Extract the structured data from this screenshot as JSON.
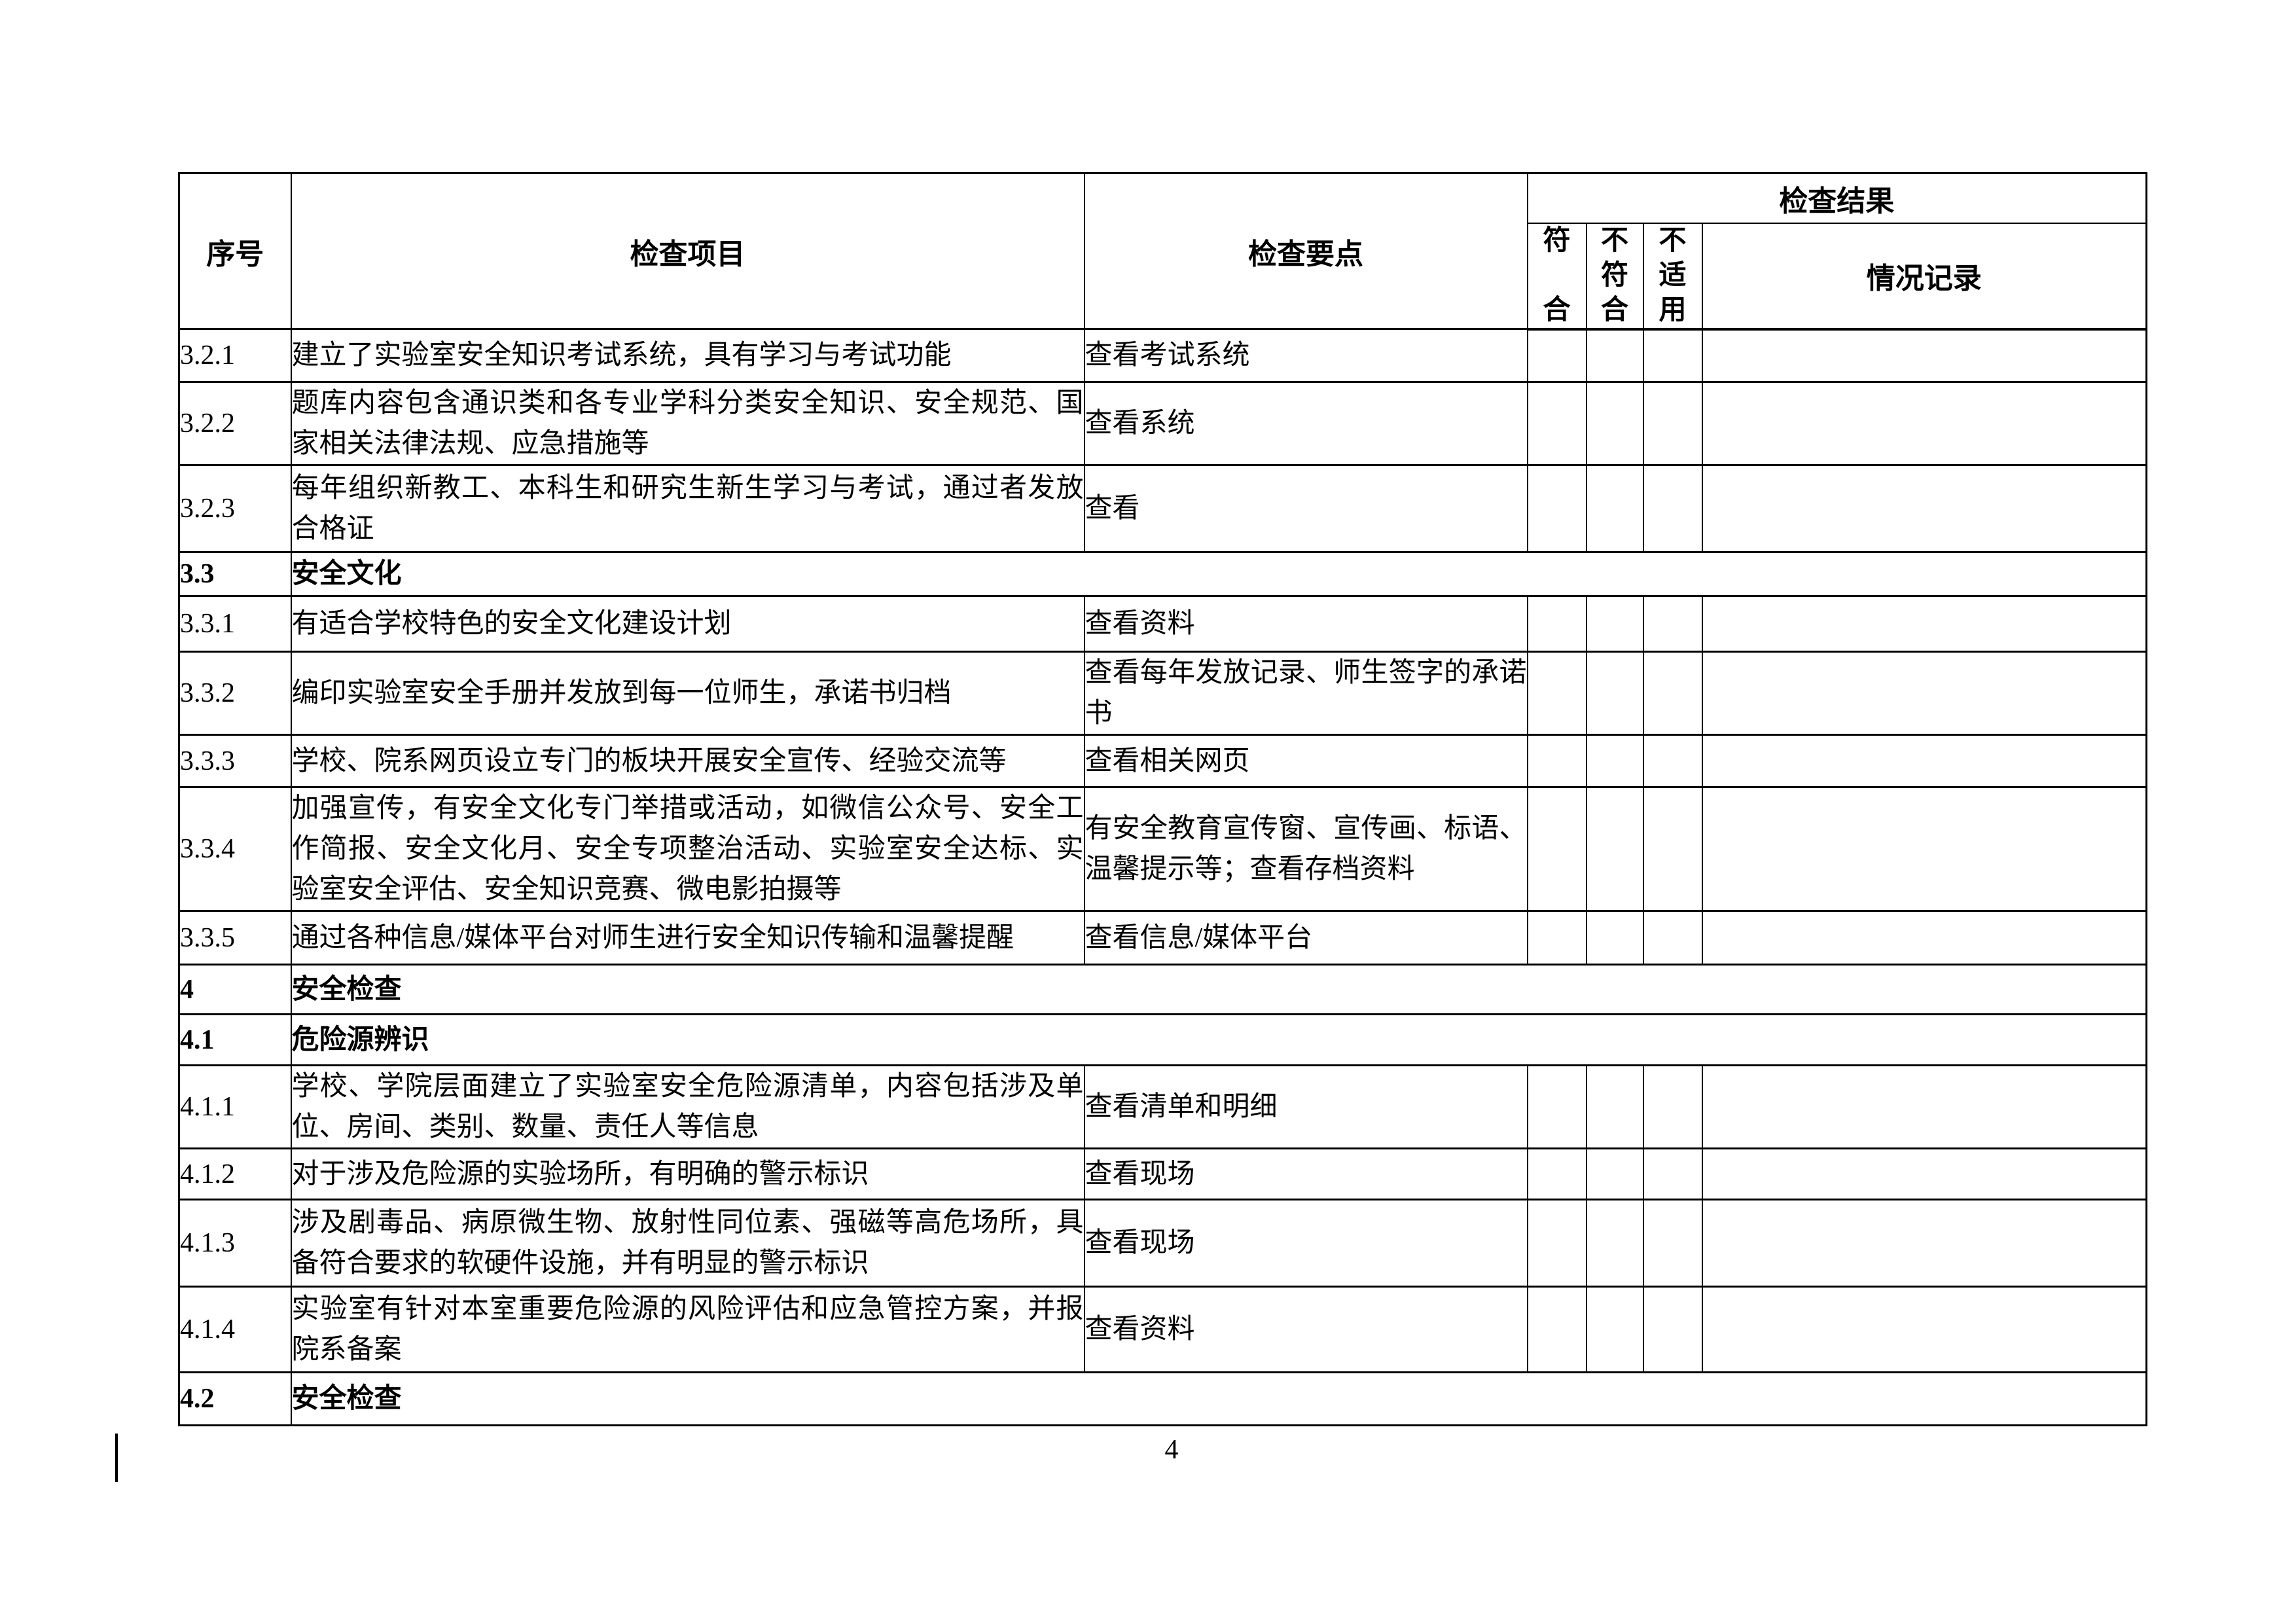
{
  "page": {
    "number": "4"
  },
  "table": {
    "headers": {
      "no": "序号",
      "item": "检查项目",
      "point": "检查要点",
      "result": "检查结果",
      "pass": "符合",
      "fail": "不符合",
      "na": "不适用",
      "record": "情况记录"
    },
    "rows": [
      {
        "type": "item",
        "no": "3.2.1",
        "item": "建立了实验室安全知识考试系统，具有学习与考试功能",
        "point": "查看考试系统",
        "pass": "",
        "fail": "",
        "na": "",
        "record": ""
      },
      {
        "type": "item",
        "no": "3.2.2",
        "item": "题库内容包含通识类和各专业学科分类安全知识、安全规范、国家相关法律法规、应急措施等",
        "point": "查看系统",
        "pass": "",
        "fail": "",
        "na": "",
        "record": ""
      },
      {
        "type": "item",
        "no": "3.2.3",
        "item": "每年组织新教工、本科生和研究生新生学习与考试，通过者发放合格证",
        "point": "查看",
        "pass": "",
        "fail": "",
        "na": "",
        "record": ""
      },
      {
        "type": "section",
        "no": "3.3",
        "item": "安全文化"
      },
      {
        "type": "item",
        "no": "3.3.1",
        "item": "有适合学校特色的安全文化建设计划",
        "point": "查看资料",
        "pass": "",
        "fail": "",
        "na": "",
        "record": ""
      },
      {
        "type": "item",
        "no": "3.3.2",
        "item": "编印实验室安全手册并发放到每一位师生，承诺书归档",
        "point": "查看每年发放记录、师生签字的承诺书",
        "pass": "",
        "fail": "",
        "na": "",
        "record": ""
      },
      {
        "type": "item",
        "no": "3.3.3",
        "item": "学校、院系网页设立专门的板块开展安全宣传、经验交流等",
        "point": "查看相关网页",
        "pass": "",
        "fail": "",
        "na": "",
        "record": ""
      },
      {
        "type": "item",
        "no": "3.3.4",
        "item": "加强宣传，有安全文化专门举措或活动，如微信公众号、安全工作简报、安全文化月、安全专项整治活动、实验室安全达标、实验室安全评估、安全知识竞赛、微电影拍摄等",
        "point": "有安全教育宣传窗、宣传画、标语、温馨提示等；查看存档资料",
        "pass": "",
        "fail": "",
        "na": "",
        "record": ""
      },
      {
        "type": "item",
        "no": "3.3.5",
        "item": "通过各种信息/媒体平台对师生进行安全知识传输和温馨提醒",
        "point": "查看信息/媒体平台",
        "pass": "",
        "fail": "",
        "na": "",
        "record": ""
      },
      {
        "type": "section",
        "no": "4",
        "item": "安全检查"
      },
      {
        "type": "section",
        "no": "4.1",
        "item": "危险源辨识"
      },
      {
        "type": "item",
        "no": "4.1.1",
        "item": "学校、学院层面建立了实验室安全危险源清单，内容包括涉及单位、房间、类别、数量、责任人等信息",
        "point": "查看清单和明细",
        "pass": "",
        "fail": "",
        "na": "",
        "record": ""
      },
      {
        "type": "item",
        "no": "4.1.2",
        "item": "对于涉及危险源的实验场所，有明确的警示标识",
        "point": "查看现场",
        "pass": "",
        "fail": "",
        "na": "",
        "record": ""
      },
      {
        "type": "item",
        "no": "4.1.3",
        "item": "涉及剧毒品、病原微生物、放射性同位素、强磁等高危场所，具备符合要求的软硬件设施，并有明显的警示标识",
        "point": "查看现场",
        "pass": "",
        "fail": "",
        "na": "",
        "record": ""
      },
      {
        "type": "item",
        "no": "4.1.4",
        "item": "实验室有针对本室重要危险源的风险评估和应急管控方案，并报院系备案",
        "point": "查看资料",
        "pass": "",
        "fail": "",
        "na": "",
        "record": ""
      },
      {
        "type": "section",
        "no": "4.2",
        "item": "安全检查"
      }
    ]
  }
}
